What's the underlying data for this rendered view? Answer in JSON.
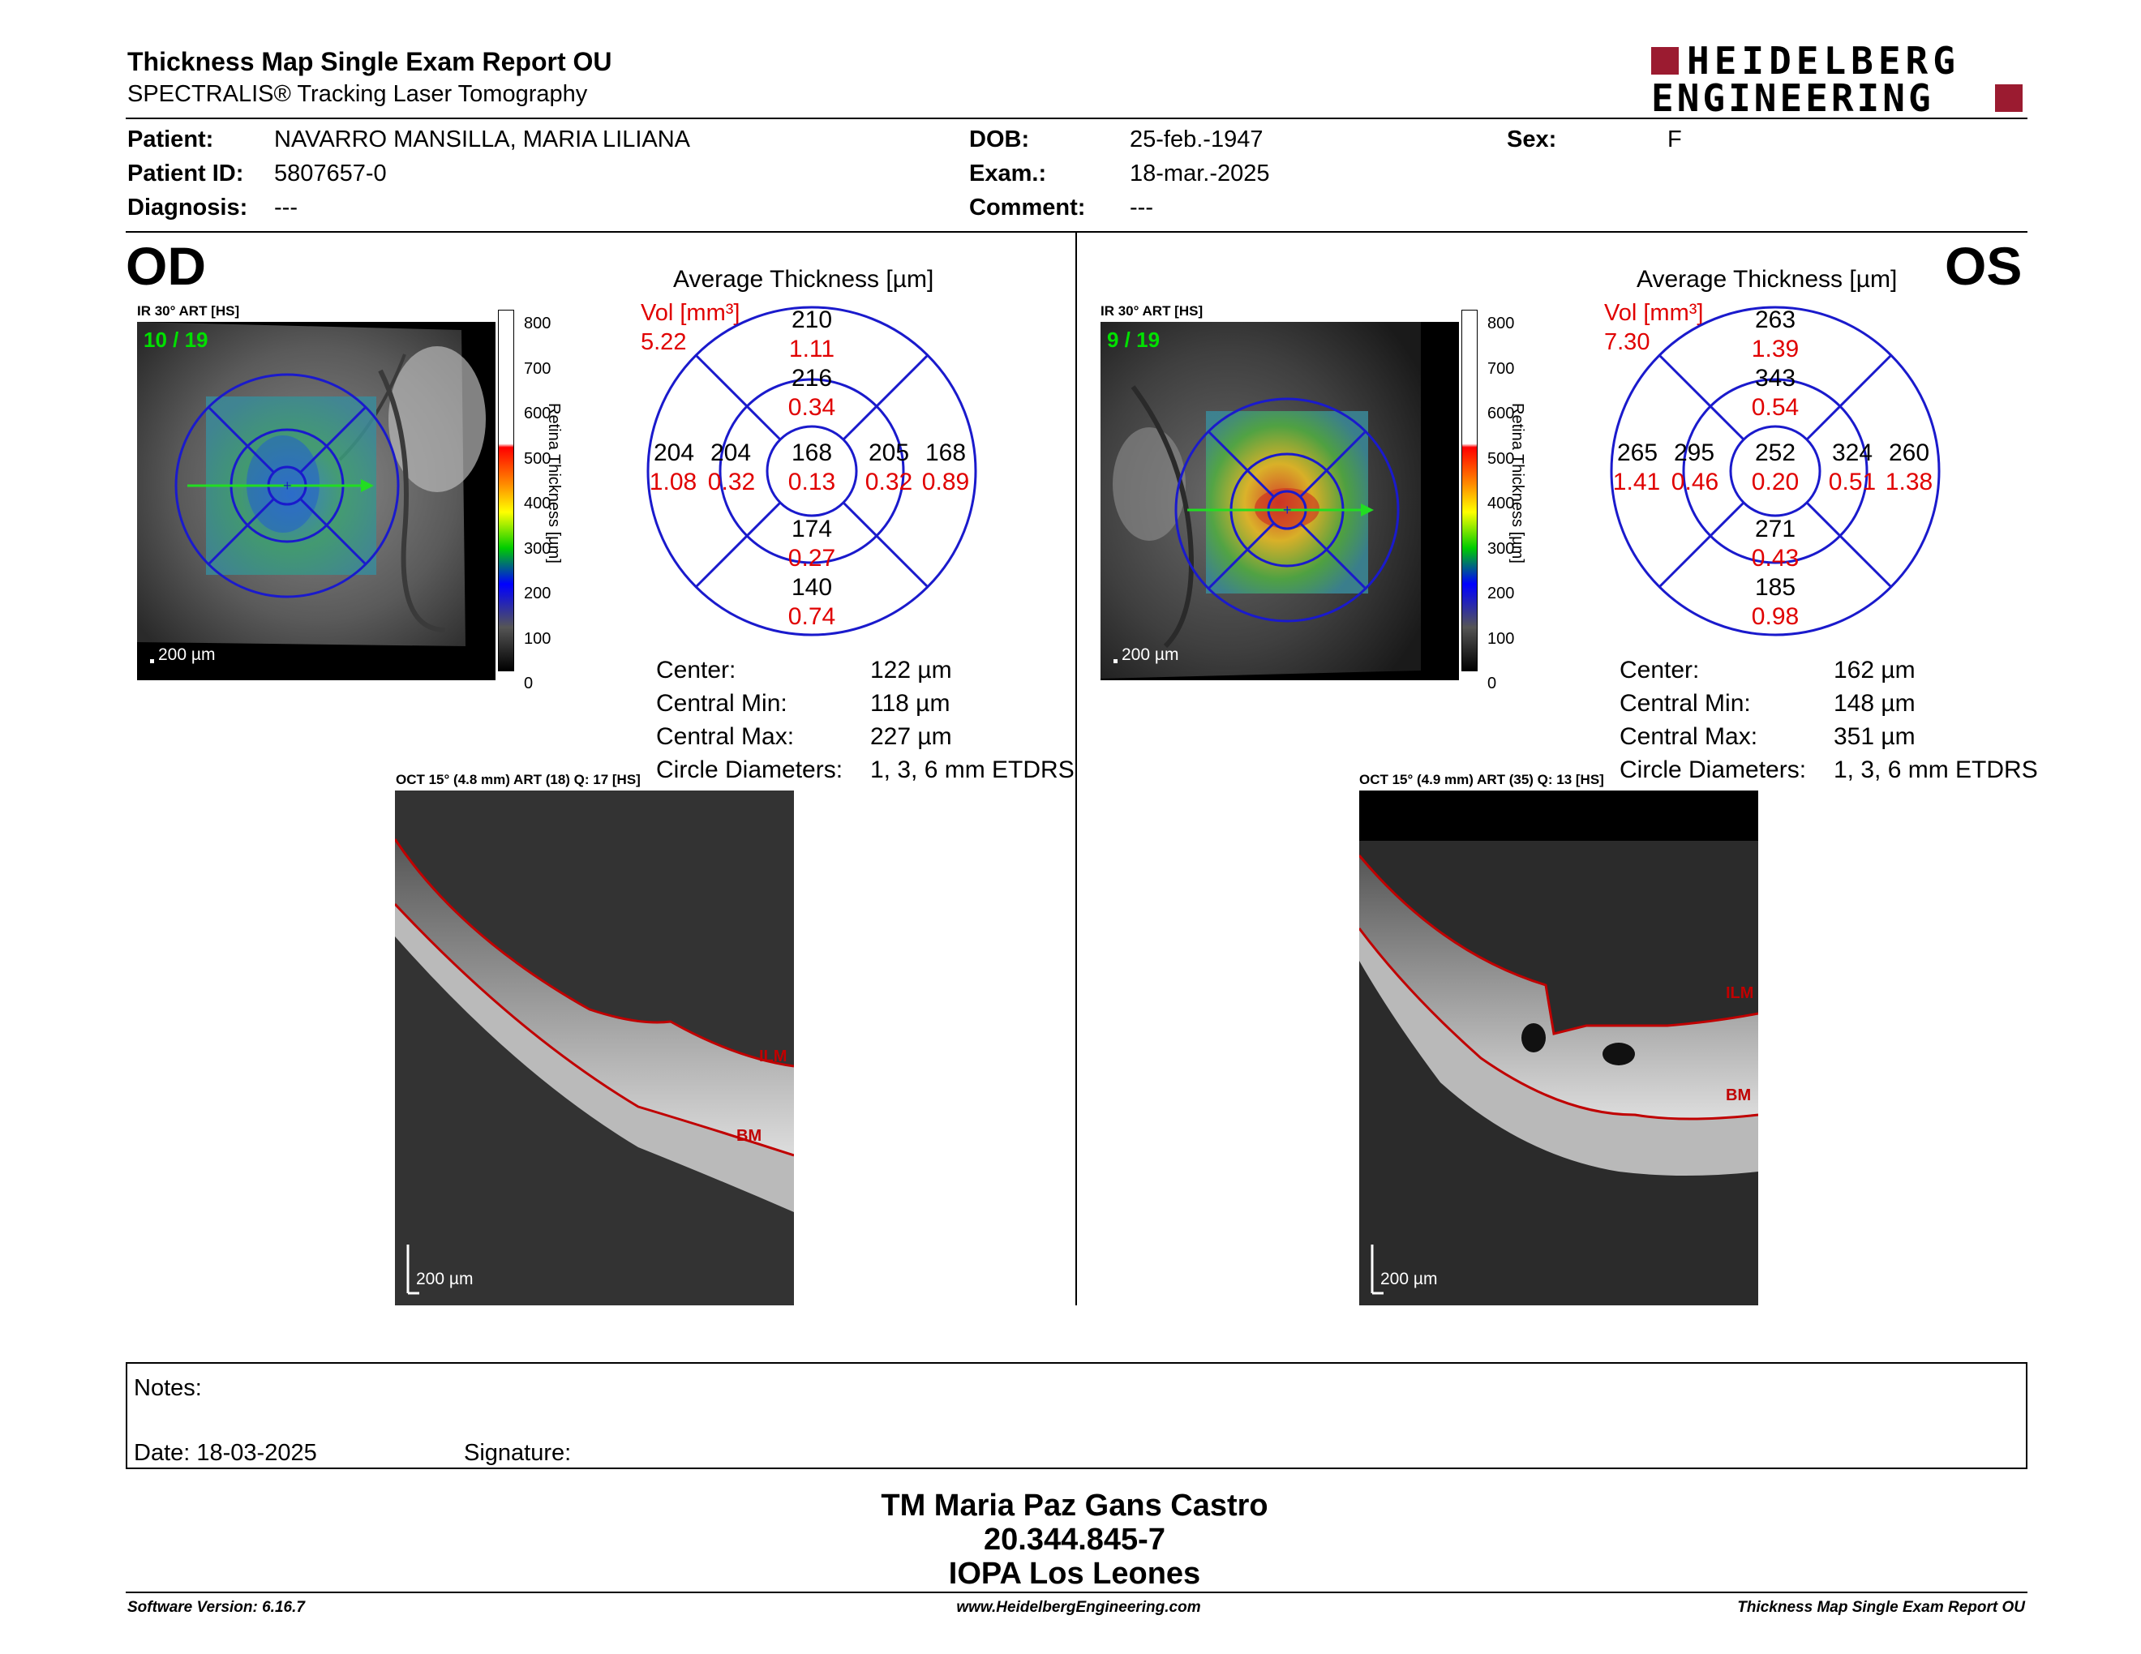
{
  "header": {
    "title": "Thickness Map Single Exam Report OU",
    "subtitle": "SPECTRALIS® Tracking Laser Tomography",
    "logo_line1": "HEIDELBERG",
    "logo_line2": "ENGINEERING"
  },
  "patient": {
    "patient_label": "Patient:",
    "patient_value": "NAVARRO MANSILLA, MARIA LILIANA",
    "id_label": "Patient ID:",
    "id_value": "5807657-0",
    "diagnosis_label": "Diagnosis:",
    "diagnosis_value": "---",
    "dob_label": "DOB:",
    "dob_value": "25-feb.-1947",
    "exam_label": "Exam.:",
    "exam_value": "18-mar.-2025",
    "comment_label": "Comment:",
    "comment_value": "---",
    "sex_label": "Sex:",
    "sex_value": "F"
  },
  "od": {
    "eye": "OD",
    "ir_label": "IR 30° ART [HS]",
    "frame": "10 / 19",
    "scale": "200 µm",
    "avg_title": "Average Thickness [µm]",
    "vol_label": "Vol [mm³]",
    "vol_total": "5.22",
    "grid": {
      "outer_sup": [
        "210",
        "1.11"
      ],
      "inner_sup": [
        "216",
        "0.34"
      ],
      "outer_nas": [
        "204",
        "1.08"
      ],
      "inner_nas": [
        "204",
        "0.32"
      ],
      "center": [
        "168",
        "0.13"
      ],
      "inner_temp": [
        "205",
        "0.32"
      ],
      "outer_temp": [
        "168",
        "0.89"
      ],
      "inner_inf": [
        "174",
        "0.27"
      ],
      "outer_inf": [
        "140",
        "0.74"
      ]
    },
    "stats": {
      "center_label": "Center:",
      "center_value": "122 µm",
      "min_label": "Central Min:",
      "min_value": "118 µm",
      "max_label": "Central Max:",
      "max_value": "227 µm",
      "diam_label": "Circle Diameters:",
      "diam_value": "1, 3, 6 mm ETDRS"
    },
    "oct_label": "OCT 15° (4.8 mm) ART (18) Q: 17 [HS]",
    "oct_scale": "200 µm",
    "ilm": "ILM",
    "bm": "BM"
  },
  "os": {
    "eye": "OS",
    "ir_label": "IR 30° ART [HS]",
    "frame": "9 / 19",
    "scale": "200 µm",
    "avg_title": "Average Thickness [µm]",
    "vol_label": "Vol [mm³]",
    "vol_total": "7.30",
    "grid": {
      "outer_sup": [
        "263",
        "1.39"
      ],
      "inner_sup": [
        "343",
        "0.54"
      ],
      "outer_nas": [
        "265",
        "1.41"
      ],
      "inner_nas": [
        "295",
        "0.46"
      ],
      "center": [
        "252",
        "0.20"
      ],
      "inner_temp": [
        "324",
        "0.51"
      ],
      "outer_temp": [
        "260",
        "1.38"
      ],
      "inner_inf": [
        "271",
        "0.43"
      ],
      "outer_inf": [
        "185",
        "0.98"
      ]
    },
    "stats": {
      "center_label": "Center:",
      "center_value": "162 µm",
      "min_label": "Central Min:",
      "min_value": "148 µm",
      "max_label": "Central Max:",
      "max_value": "351 µm",
      "diam_label": "Circle Diameters:",
      "diam_value": "1, 3, 6 mm ETDRS"
    },
    "oct_label": "OCT 15° (4.9 mm) ART (35) Q: 13 [HS]",
    "oct_scale": "200 µm",
    "ilm": "ILM",
    "bm": "BM"
  },
  "colorbar": {
    "ticks": [
      "800",
      "700",
      "600",
      "500",
      "400",
      "300",
      "200",
      "100",
      "0"
    ],
    "label": "Retina Thickness [µm]"
  },
  "notes": {
    "notes_label": "Notes:",
    "date_label": "Date: 18-03-2025",
    "signature_label": "Signature:"
  },
  "signature_block": {
    "name": "TM Maria Paz Gans Castro",
    "id": "20.344.845-7",
    "place": "IOPA Los Leones"
  },
  "footer": {
    "software": "Software Version: 6.16.7",
    "website": "www.HeidelbergEngineering.com",
    "report": "Thickness Map Single Exam Report OU"
  },
  "colors": {
    "grid_blue": "#1a1acc",
    "value_red": "#e00000",
    "brand_red": "#9b1b30",
    "frame_green": "#00e000"
  }
}
